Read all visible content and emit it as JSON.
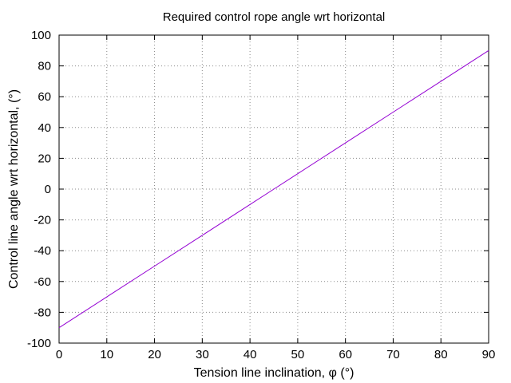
{
  "chart_data": {
    "type": "line",
    "title": "Required control rope angle wrt horizontal",
    "xlabel": "Tension line inclination, φ (°)",
    "ylabel": "Control line angle wrt horizontal, (°)",
    "xlim": [
      0,
      90
    ],
    "ylim": [
      -100,
      100
    ],
    "x_ticks": [
      "0",
      "10",
      "20",
      "30",
      "40",
      "50",
      "60",
      "70",
      "80",
      "90"
    ],
    "y_ticks": [
      "-100",
      "-80",
      "-60",
      "-40",
      "-20",
      "0",
      "20",
      "40",
      "60",
      "80",
      "100"
    ],
    "grid": true,
    "series": [
      {
        "color": "#9400d3",
        "x": [
          0,
          10,
          20,
          30,
          40,
          45,
          50,
          60,
          70,
          80,
          90
        ],
        "y": [
          -90,
          -70,
          -50,
          -30,
          -10,
          0,
          10,
          30,
          50,
          70,
          90
        ]
      }
    ]
  }
}
